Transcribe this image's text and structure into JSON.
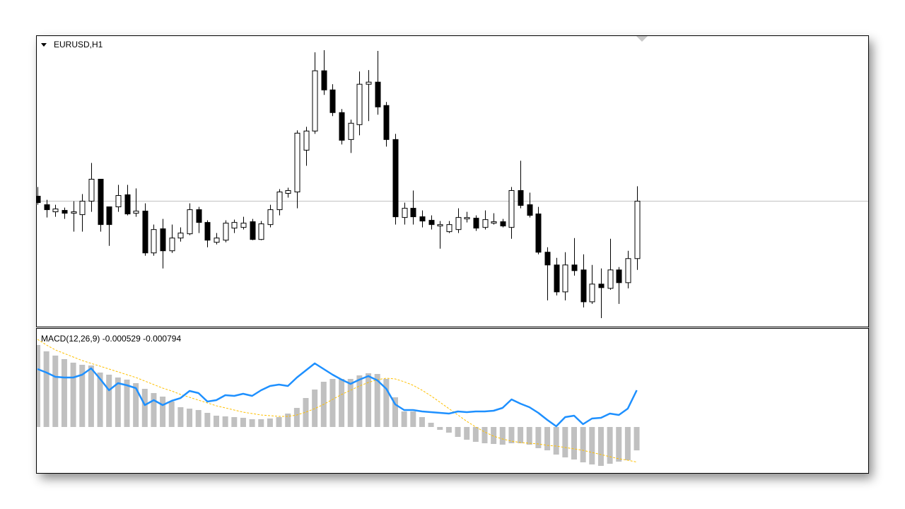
{
  "chart_data": [
    {
      "type": "candlestick",
      "title": "EURUSD,H1",
      "ylim": [
        0,
        409
      ],
      "up_color": "#ffffff",
      "down_color": "#000000",
      "price_line": true,
      "open": [
        183,
        171,
        161,
        163,
        159,
        157,
        176,
        207,
        168,
        168,
        185,
        159,
        162,
        103,
        137,
        106,
        124,
        130,
        164,
        146,
        118,
        121,
        138,
        139,
        147,
        122,
        143,
        164,
        187,
        189,
        248,
        275,
        360,
        333,
        301,
        263,
        284,
        341,
        344,
        311,
        263,
        153,
        166,
        154,
        149,
        141,
        133,
        136,
        151,
        152,
        139,
        145,
        147,
        139,
        191,
        171,
        158,
        104,
        86,
        48,
        86,
        79,
        34,
        59,
        53,
        79,
        61,
        95
      ],
      "high": [
        196,
        178,
        171,
        167,
        176,
        186,
        230,
        207,
        168,
        199,
        199,
        194,
        173,
        143,
        151,
        143,
        139,
        173,
        168,
        149,
        131,
        149,
        150,
        154,
        151,
        148,
        171,
        193,
        195,
        276,
        281,
        386,
        389,
        341,
        306,
        291,
        359,
        361,
        388,
        316,
        271,
        174,
        191,
        163,
        156,
        148,
        148,
        166,
        161,
        156,
        163,
        159,
        151,
        196,
        233,
        188,
        168,
        111,
        96,
        104,
        124,
        101,
        86,
        81,
        123,
        83,
        106,
        197
      ],
      "low": [
        171,
        153,
        154,
        151,
        133,
        133,
        161,
        133,
        113,
        161,
        156,
        154,
        99,
        99,
        81,
        103,
        119,
        128,
        131,
        111,
        115,
        118,
        131,
        136,
        121,
        121,
        139,
        156,
        181,
        166,
        226,
        271,
        326,
        296,
        256,
        244,
        269,
        289,
        298,
        253,
        143,
        143,
        143,
        139,
        136,
        109,
        131,
        131,
        146,
        134,
        136,
        143,
        139,
        123,
        166,
        153,
        101,
        36,
        43,
        36,
        71,
        26,
        31,
        11,
        51,
        31,
        53,
        79
      ],
      "close": [
        174,
        164,
        165,
        159,
        161,
        176,
        207,
        143,
        143,
        184,
        158,
        162,
        103,
        136,
        106,
        124,
        131,
        164,
        146,
        121,
        124,
        145,
        146,
        145,
        122,
        144,
        164,
        189,
        191,
        272,
        275,
        360,
        333,
        301,
        262,
        286,
        341,
        344,
        309,
        263,
        154,
        166,
        154,
        148,
        143,
        143,
        143,
        153,
        153,
        138,
        150,
        147,
        141,
        191,
        170,
        156,
        104,
        86,
        48,
        86,
        78,
        34,
        59,
        54,
        79,
        61,
        95,
        176
      ]
    },
    {
      "type": "combo",
      "title": "MACD(12,26,9) -0.000529 -0.000794",
      "ylim": [
        -0.001024,
        0.002208
      ],
      "series": [
        {
          "type": "bar",
          "color": "#c0c0c0",
          "values": [
            0.001856,
            0.001712,
            0.001616,
            0.001536,
            0.001456,
            0.001408,
            0.001392,
            0.001232,
            0.001184,
            0.00112,
            0.001072,
            0.000992,
            0.000864,
            0.000768,
            0.000688,
            0.000576,
            0.000448,
            0.000416,
            0.000384,
            0.00032,
            0.000256,
            0.00024,
            0.000224,
            0.000208,
            0.000176,
            0.000176,
            0.000192,
            0.000224,
            0.000304,
            0.000432,
            0.000656,
            0.000848,
            0.001024,
            0.001088,
            0.001088,
            0.001088,
            0.001168,
            0.001216,
            0.0012,
            0.001088,
            0.000672,
            0.000352,
            0.000352,
            0.000224,
            9.6e-05,
            -6.4e-05,
            -0.000128,
            -0.000224,
            -0.000288,
            -0.000336,
            -0.000368,
            -0.000384,
            -0.0004,
            -0.000368,
            -0.000368,
            -0.0004,
            -0.00048,
            -0.000528,
            -0.000624,
            -0.000688,
            -0.000736,
            -0.0008,
            -0.000848,
            -0.00088,
            -0.000832,
            -0.000784,
            -0.000752,
            -0.000529
          ]
        },
        {
          "type": "line",
          "color": "#ffc000",
          "dashed": true,
          "values": [
            0.001984,
            0.001856,
            0.001744,
            0.001664,
            0.001584,
            0.001504,
            0.00144,
            0.001376,
            0.001312,
            0.001248,
            0.001184,
            0.00112,
            0.00104,
            0.00096,
            0.00088,
            0.000816,
            0.000736,
            0.000672,
            0.000608,
            0.000544,
            0.00048,
            0.000432,
            0.000384,
            0.000336,
            0.000304,
            0.000272,
            0.000256,
            0.00024,
            0.00024,
            0.000272,
            0.000336,
            0.000416,
            0.000512,
            0.000624,
            0.000736,
            0.000832,
            0.000928,
            0.001008,
            0.001072,
            0.001104,
            0.001088,
            0.001024,
            0.000944,
            0.000832,
            0.000704,
            0.00056,
            0.000416,
            0.000272,
            0.000128,
            0,
            -0.000112,
            -0.000208,
            -0.000272,
            -0.00032,
            -0.000352,
            -0.000368,
            -0.000384,
            -0.000416,
            -0.000432,
            -0.000464,
            -0.000496,
            -0.000528,
            -0.000576,
            -0.000624,
            -0.000672,
            -0.00072,
            -0.000752,
            -0.000794
          ]
        },
        {
          "type": "line",
          "color": "#1e90ff",
          "dashed": false,
          "values": [
            0.001312,
            0.001232,
            0.001136,
            0.00112,
            0.00112,
            0.001184,
            0.001328,
            0.001088,
            0.000832,
            0.000992,
            0.000944,
            0.00088,
            0.000496,
            0.000608,
            0.000496,
            0.000592,
            0.000656,
            0.000816,
            0.000768,
            0.000576,
            0.000608,
            0.00072,
            0.000704,
            0.000752,
            0.000704,
            0.000832,
            0.000928,
            0.00096,
            0.000928,
            0.00112,
            0.00128,
            0.00144,
            0.001312,
            0.001184,
            0.001072,
            0.000976,
            0.001072,
            0.001152,
            0.001056,
            0.000864,
            0.000512,
            0.000384,
            0.000384,
            0.000352,
            0.000336,
            0.00032,
            0.000304,
            0.000352,
            0.000336,
            0.000352,
            0.000352,
            0.000368,
            0.000432,
            0.000624,
            0.000528,
            0.000448,
            0.00032,
            0.00016,
            1.6e-05,
            0.000224,
            0.000256,
            6.4e-05,
            0.000192,
            0.000208,
            0.000304,
            0.000272,
            0.000416,
            0.000832
          ]
        }
      ]
    }
  ]
}
